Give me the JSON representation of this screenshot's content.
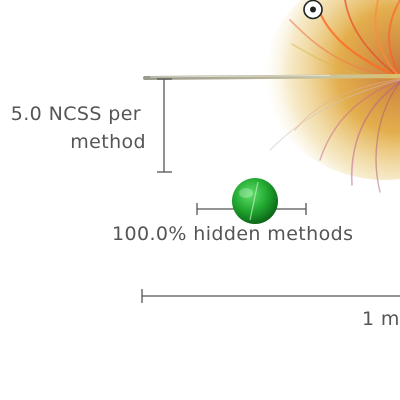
{
  "legend": {
    "ncss_line1": "5.0 NCSS per",
    "ncss_line2": "method",
    "hidden_methods": "100.0% hidden methods",
    "scale": "1 m"
  },
  "colors": {
    "background": "#ffffff",
    "text": "#555555",
    "bracket": "#555555",
    "sphere": "#1fa52e",
    "bristle_top": "#ff6a20",
    "bristle_base": "#d9b340"
  },
  "icons": {
    "zoom_control": "target-icon"
  }
}
